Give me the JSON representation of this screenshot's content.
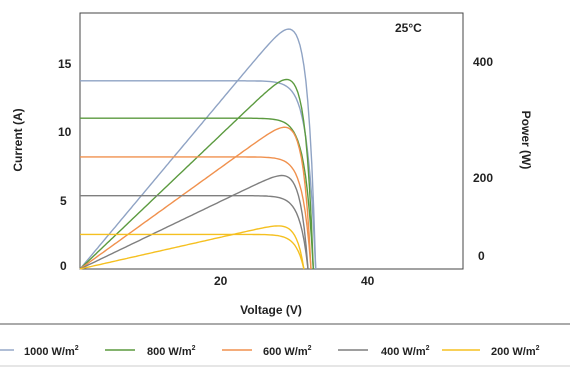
{
  "chart_data": {
    "type": "line",
    "annotation": "25°C",
    "xlabel": "Voltage (V)",
    "ylabel_left": "Current (A)",
    "ylabel_right": "Power (W)",
    "xlim": [
      0,
      65
    ],
    "ylim_left": [
      0,
      18.5
    ],
    "ylim_right": [
      0,
      493
    ],
    "x_ticks": [
      20,
      40
    ],
    "y_left_ticks": [
      0,
      5,
      10,
      15
    ],
    "y_right_ticks": [
      0,
      200,
      400
    ],
    "legend_position": "bottom",
    "series": [
      {
        "name": "1000 W/m²",
        "label_main": "1000 W/m",
        "label_sup": "2",
        "color": "#8fa3c4",
        "isc": 13.6,
        "voc": 40.0,
        "peak_v": 34.5,
        "peak_p": 462
      },
      {
        "name": "800 W/m²",
        "label_main": "800 W/m",
        "label_sup": "2",
        "color": "#5b9a3f",
        "isc": 10.9,
        "voc": 39.6,
        "peak_v": 34.5,
        "peak_p": 365
      },
      {
        "name": "600 W/m²",
        "label_main": "600 W/m",
        "label_sup": "2",
        "color": "#f0914e",
        "isc": 8.1,
        "voc": 39.2,
        "peak_v": 34.5,
        "peak_p": 273
      },
      {
        "name": "400 W/m²",
        "label_main": "400 W/m",
        "label_sup": "2",
        "color": "#7f7f7f",
        "isc": 5.3,
        "voc": 38.7,
        "peak_v": 34.0,
        "peak_p": 180
      },
      {
        "name": "200 W/m²",
        "label_main": "200 W/m",
        "label_sup": "2",
        "color": "#f5c020",
        "isc": 2.5,
        "voc": 38.0,
        "peak_v": 33.5,
        "peak_p": 83
      }
    ]
  }
}
